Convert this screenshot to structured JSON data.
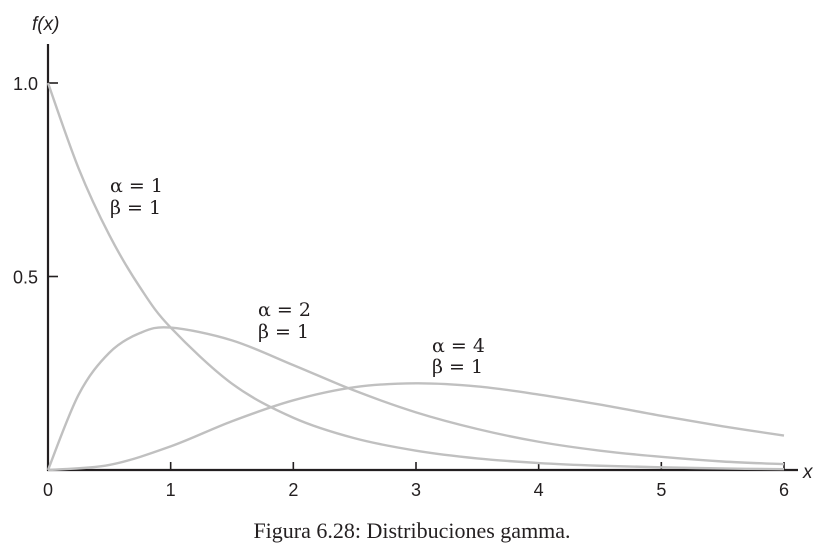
{
  "chart_data": {
    "type": "line",
    "xlabel": "x",
    "ylabel": "f(x)",
    "xlim": [
      0,
      6
    ],
    "ylim": [
      0,
      1.0
    ],
    "x_ticks": [
      0,
      1,
      2,
      3,
      4,
      5,
      6
    ],
    "y_ticks": [
      0.5,
      1.0
    ],
    "x_tick_labels": [
      "0",
      "1",
      "2",
      "3",
      "4",
      "5",
      "6"
    ],
    "y_tick_labels": [
      "0.5",
      "1.0"
    ],
    "grid": false,
    "line_color": "#c0c0c0",
    "axis_color": "#231f20",
    "series": [
      {
        "label_lines": [
          "α = 1",
          "β = 1"
        ],
        "x": [
          0,
          0.25,
          0.5,
          0.75,
          1,
          1.5,
          2,
          2.5,
          3,
          3.5,
          4,
          4.5,
          5,
          5.5,
          6
        ],
        "y": [
          1.0,
          0.779,
          0.607,
          0.472,
          0.368,
          0.223,
          0.135,
          0.082,
          0.05,
          0.03,
          0.018,
          0.011,
          0.007,
          0.004,
          0.002
        ]
      },
      {
        "label_lines": [
          "α = 2",
          "β = 1"
        ],
        "x": [
          0,
          0.25,
          0.5,
          0.75,
          1,
          1.5,
          2,
          2.5,
          3,
          3.5,
          4,
          4.5,
          5,
          5.5,
          6
        ],
        "y": [
          0,
          0.195,
          0.303,
          0.354,
          0.368,
          0.335,
          0.271,
          0.205,
          0.149,
          0.106,
          0.073,
          0.05,
          0.034,
          0.022,
          0.015
        ]
      },
      {
        "label_lines": [
          "α = 4",
          "β = 1"
        ],
        "x": [
          0,
          0.5,
          1,
          1.5,
          2,
          2.5,
          3,
          3.5,
          4,
          4.5,
          5,
          5.5,
          6
        ],
        "y": [
          0,
          0.013,
          0.061,
          0.126,
          0.18,
          0.214,
          0.224,
          0.216,
          0.195,
          0.169,
          0.14,
          0.113,
          0.089
        ]
      }
    ]
  },
  "caption": "Figura 6.28: Distribuciones gamma."
}
